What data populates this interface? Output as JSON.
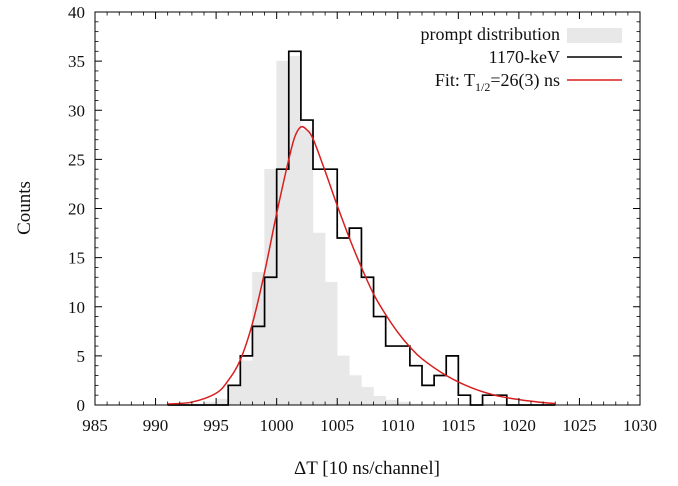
{
  "chart_data": {
    "type": "histogram",
    "xlabel": "ΔT [10 ns/channel]",
    "ylabel": "Counts",
    "xlim": [
      985,
      1030
    ],
    "ylim": [
      0,
      40
    ],
    "x_major_ticks": [
      985,
      990,
      995,
      1000,
      1005,
      1010,
      1015,
      1020,
      1025,
      1030
    ],
    "x_tick_labels": [
      "985",
      "990",
      "995",
      "1000",
      "1005",
      "1010",
      "1015",
      "1020",
      "1025",
      "1030"
    ],
    "y_major_ticks": [
      0,
      5,
      10,
      15,
      20,
      25,
      30,
      35,
      40
    ],
    "y_tick_labels": [
      "0",
      "5",
      "10",
      "15",
      "20",
      "25",
      "30",
      "35",
      "40"
    ],
    "legend_position": "top-right",
    "legend": {
      "prompt": "prompt distribution",
      "data": "1170-keV",
      "fit_prefix": "Fit: T",
      "fit_sub": "1/2",
      "fit_suffix": "=26(3) ns"
    },
    "colors": {
      "prompt_fill": "#e8e8e8",
      "data_line": "#000000",
      "fit_line": "#d81e1e"
    },
    "series": [
      {
        "name": "prompt distribution",
        "style": "filled-step",
        "bin_width": 1,
        "bin_starts": [
          991,
          992,
          993,
          994,
          995,
          996,
          997,
          998,
          999,
          1000,
          1001,
          1002,
          1003,
          1004,
          1005,
          1006,
          1007,
          1008,
          1009,
          1010,
          1011,
          1012,
          1013
        ],
        "values": [
          0,
          0,
          0.1,
          0.3,
          0.6,
          1.8,
          4.5,
          13.5,
          24,
          35,
          35.5,
          28,
          17.5,
          12.5,
          5,
          3,
          1.8,
          0.9,
          0.5,
          0.3,
          0.1,
          0.05,
          0
        ]
      },
      {
        "name": "1170-keV",
        "style": "step",
        "bin_width": 1,
        "bin_starts": [
          991,
          992,
          993,
          994,
          995,
          996,
          997,
          998,
          999,
          1000,
          1001,
          1002,
          1003,
          1004,
          1005,
          1006,
          1007,
          1008,
          1009,
          1010,
          1011,
          1012,
          1013,
          1014,
          1015,
          1016,
          1017,
          1018,
          1019,
          1020,
          1021,
          1022
        ],
        "values": [
          0,
          0,
          0,
          0,
          0,
          2,
          5,
          8,
          13,
          24,
          36,
          29,
          24,
          24,
          17,
          18,
          13,
          9,
          6,
          6,
          4,
          2,
          3,
          5,
          1,
          0,
          1,
          1,
          0,
          0,
          0,
          0
        ]
      },
      {
        "name": "Fit: T1/2=26(3) ns",
        "style": "line",
        "x": [
          991,
          993,
          995,
          996,
          997,
          998,
          999,
          1000,
          1001,
          1001.5,
          1002,
          1002.5,
          1003,
          1004,
          1005,
          1006,
          1007,
          1008,
          1009,
          1010,
          1011,
          1012,
          1014,
          1016,
          1018,
          1020,
          1022,
          1023
        ],
        "y": [
          0.1,
          0.3,
          1.2,
          2.5,
          4.6,
          8.3,
          13.5,
          19.5,
          25.0,
          27.3,
          28.3,
          28.0,
          27.1,
          23.8,
          20.3,
          17.0,
          14.0,
          11.3,
          9.2,
          7.4,
          5.9,
          4.7,
          3.0,
          1.8,
          1.0,
          0.55,
          0.25,
          0.15
        ]
      }
    ]
  }
}
